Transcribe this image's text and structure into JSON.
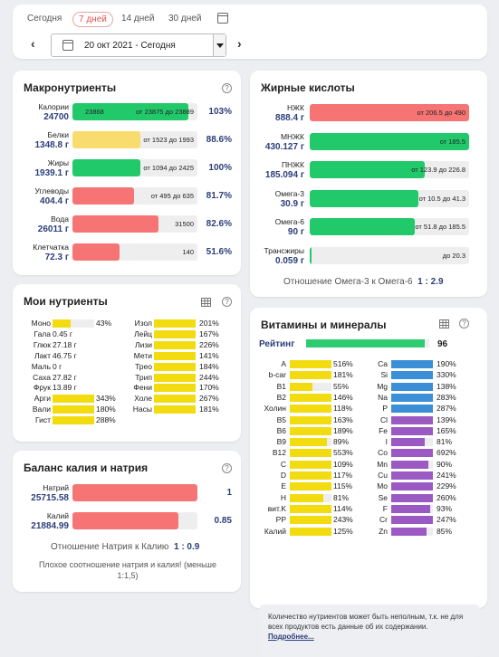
{
  "nav": {
    "tabs": [
      "Сегодня",
      "7 дней",
      "14 дней",
      "30 дней"
    ],
    "active_tab": "7 дней",
    "date_value": "20 окт 2021 - Сегодня"
  },
  "macros": {
    "title": "Макронутриенты",
    "rows": [
      {
        "name": "Калории",
        "value": "24700",
        "color": "#22c96b",
        "fill": 0.93,
        "inbar": "23868",
        "note": "от 23875 до 23889",
        "pct": "103%"
      },
      {
        "name": "Белки",
        "value": "1348.8 г",
        "color": "#f9dc6e",
        "fill": 0.54,
        "inbar": "",
        "note": "от 1523 до 1993",
        "pct": "88.6%"
      },
      {
        "name": "Жиры",
        "value": "1939.1 г",
        "color": "#22c96b",
        "fill": 0.54,
        "inbar": "",
        "note": "от 1094 до 2425",
        "pct": "100%"
      },
      {
        "name": "Углеводы",
        "value": "404.4 г",
        "color": "#f77474",
        "fill": 0.49,
        "inbar": "",
        "note": "от 495 до 635",
        "pct": "81.7%"
      },
      {
        "name": "Вода",
        "value": "26011 г",
        "color": "#f77474",
        "fill": 0.69,
        "inbar": "",
        "note": "31500",
        "pct": "82.6%"
      },
      {
        "name": "Клетчатка",
        "value": "72.3 г",
        "color": "#f77474",
        "fill": 0.38,
        "inbar": "",
        "note": "140",
        "pct": "51.6%"
      }
    ]
  },
  "fatty": {
    "title": "Жирные кислоты",
    "rows": [
      {
        "name": "НЖК",
        "value": "888.4 г",
        "color": "#f77474",
        "fill": 1.0,
        "note": "от 206.5   до 490"
      },
      {
        "name": "МНЖК",
        "value": "430.127 г",
        "color": "#22c96b",
        "fill": 1.0,
        "note": "от 185.5"
      },
      {
        "name": "ПНЖК",
        "value": "185.094 г",
        "color": "#22c96b",
        "fill": 0.72,
        "note": "от 123.9   до 226.8"
      },
      {
        "name": "Омега-3",
        "value": "30.9 г",
        "color": "#22c96b",
        "fill": 0.68,
        "note": "от 10.5   до 41.3"
      },
      {
        "name": "Омега-6",
        "value": "90 г",
        "color": "#22c96b",
        "fill": 0.66,
        "note": "от 51.8   до 185.5"
      },
      {
        "name": "Трансжиры",
        "value": "0.059 г",
        "color": "#22c96b",
        "fill": 0.01,
        "note": "до 20.3"
      }
    ],
    "ratio_label": "Отношение Омега-3 к Омега-6",
    "ratio_value": "1 : 2.9"
  },
  "mynut": {
    "title": "Мои нутриенты",
    "left": [
      {
        "name": "Моно",
        "value": "43%",
        "bar": 0.43
      },
      {
        "name": "Гала",
        "value": "0.45 г",
        "bar": 0
      },
      {
        "name": "Глюк",
        "value": "27.18 г",
        "bar": 0
      },
      {
        "name": "Лакт",
        "value": "46.75 г",
        "bar": 0
      },
      {
        "name": "Маль",
        "value": "0 г",
        "bar": 0
      },
      {
        "name": "Саха",
        "value": "27.82 г",
        "bar": 0
      },
      {
        "name": "Фрук",
        "value": "13.89 г",
        "bar": 0
      },
      {
        "name": "Арги",
        "value": "343%",
        "bar": 1
      },
      {
        "name": "Вали",
        "value": "180%",
        "bar": 1
      },
      {
        "name": "Гист",
        "value": "288%",
        "bar": 1
      }
    ],
    "right": [
      {
        "name": "Изол",
        "value": "201%"
      },
      {
        "name": "Лейц",
        "value": "167%"
      },
      {
        "name": "Лизи",
        "value": "226%"
      },
      {
        "name": "Мети",
        "value": "141%"
      },
      {
        "name": "Трео",
        "value": "184%"
      },
      {
        "name": "Трип",
        "value": "244%"
      },
      {
        "name": "Фени",
        "value": "170%"
      },
      {
        "name": "Холе",
        "value": "267%"
      },
      {
        "name": "Насы",
        "value": "181%"
      }
    ]
  },
  "kna": {
    "title": "Баланс калия и натрия",
    "rows": [
      {
        "name": "Натрий",
        "value": "25715.58",
        "fill": 1.0,
        "num": "1"
      },
      {
        "name": "Калий",
        "value": "21884.99",
        "fill": 0.85,
        "num": "0.85"
      }
    ],
    "ratio_label": "Отношение Натрия к Калию",
    "ratio_value": "1 : 0.9",
    "warning": "Плохое соотношение натрия и калия! (меньше 1:1,5)"
  },
  "vit": {
    "title": "Витамины и минералы",
    "rating_label": "Рейтинг",
    "rating_value": "96",
    "rating_fill": 0.96,
    "left": [
      {
        "name": "A",
        "value": "516%",
        "bar": 1
      },
      {
        "name": "b-car",
        "value": "181%",
        "bar": 1
      },
      {
        "name": "B1",
        "value": "55%",
        "bar": 0.55
      },
      {
        "name": "B2",
        "value": "146%",
        "bar": 1
      },
      {
        "name": "Холин",
        "value": "118%",
        "bar": 1
      },
      {
        "name": "B5",
        "value": "163%",
        "bar": 1
      },
      {
        "name": "B6",
        "value": "189%",
        "bar": 1
      },
      {
        "name": "B9",
        "value": "89%",
        "bar": 0.89
      },
      {
        "name": "B12",
        "value": "553%",
        "bar": 1
      },
      {
        "name": "C",
        "value": "109%",
        "bar": 1
      },
      {
        "name": "D",
        "value": "117%",
        "bar": 1
      },
      {
        "name": "E",
        "value": "115%",
        "bar": 1
      },
      {
        "name": "H",
        "value": "81%",
        "bar": 0.81
      },
      {
        "name": "вит.K",
        "value": "114%",
        "bar": 1
      },
      {
        "name": "PP",
        "value": "243%",
        "bar": 1
      },
      {
        "name": "Калий",
        "value": "125%",
        "bar": 1
      }
    ],
    "right": [
      {
        "name": "Ca",
        "value": "190%",
        "bar": 1
      },
      {
        "name": "Si",
        "value": "330%",
        "bar": 1
      },
      {
        "name": "Mg",
        "value": "138%",
        "bar": 1
      },
      {
        "name": "Na",
        "value": "283%",
        "bar": 1
      },
      {
        "name": "P",
        "value": "287%",
        "bar": 1
      },
      {
        "name": "Cl",
        "value": "139%",
        "bar": 1
      },
      {
        "name": "Fe",
        "value": "165%",
        "bar": 1
      },
      {
        "name": "I",
        "value": "81%",
        "bar": 0.81
      },
      {
        "name": "Co",
        "value": "692%",
        "bar": 1
      },
      {
        "name": "Mn",
        "value": "90%",
        "bar": 0.9
      },
      {
        "name": "Cu",
        "value": "241%",
        "bar": 1
      },
      {
        "name": "Mo",
        "value": "229%",
        "bar": 1
      },
      {
        "name": "Se",
        "value": "260%",
        "bar": 1
      },
      {
        "name": "F",
        "value": "93%",
        "bar": 0.93
      },
      {
        "name": "Cr",
        "value": "247%",
        "bar": 1
      },
      {
        "name": "Zn",
        "value": "85%",
        "bar": 0.85
      }
    ],
    "info_text": "Количество нутриентов может быть неполным, т.к. не для всех продуктов есть данные об их содержании.",
    "info_link": "Подробнее..."
  }
}
